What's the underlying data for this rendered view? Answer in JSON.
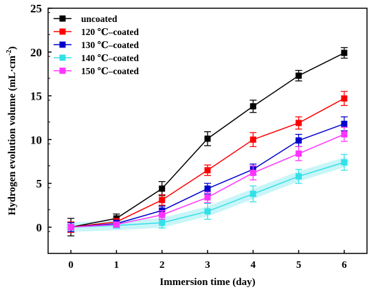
{
  "chart_data": {
    "type": "line",
    "title": "",
    "xlabel": "Immersion time (day)",
    "ylabel": "Hydrogen  evolution volume (mL·cm",
    "ylabel_sup": "-2",
    "ylabel_close": ")",
    "x": [
      0,
      1,
      2,
      3,
      4,
      5,
      6
    ],
    "xlim": [
      -0.5,
      6.5
    ],
    "ylim": [
      -3,
      25
    ],
    "xticks": [
      0,
      1,
      2,
      3,
      4,
      5,
      6
    ],
    "yticks": [
      0,
      5,
      10,
      15,
      20,
      25
    ],
    "grid": false,
    "legend_position": "top-left",
    "series": [
      {
        "name": "uncoated",
        "color": "#000000",
        "values": [
          0,
          1.0,
          4.4,
          10.1,
          13.8,
          17.3,
          19.9
        ],
        "errors": [
          1.0,
          0.5,
          0.8,
          0.8,
          0.7,
          0.6,
          0.6
        ],
        "halo": ""
      },
      {
        "name": "120 ℃–coated",
        "color": "#ff0000",
        "values": [
          0,
          0.6,
          3.1,
          6.5,
          10.0,
          11.9,
          14.7
        ],
        "errors": [
          0.6,
          0.4,
          0.6,
          0.6,
          0.8,
          0.7,
          0.8
        ],
        "halo": ""
      },
      {
        "name": "130 ℃–coated",
        "color": "#0000cc",
        "values": [
          0,
          0.4,
          1.9,
          4.4,
          6.6,
          9.9,
          11.8
        ],
        "errors": [
          0.5,
          0.4,
          0.5,
          0.6,
          0.6,
          0.7,
          0.8
        ],
        "halo": ""
      },
      {
        "name": "140 ℃–coated",
        "color": "#33e0e8",
        "values": [
          0,
          0.2,
          0.5,
          1.8,
          3.8,
          5.8,
          7.4
        ],
        "errors": [
          0.3,
          0.3,
          0.6,
          0.9,
          0.9,
          0.8,
          0.9
        ],
        "halo": "#bff3f7"
      },
      {
        "name": "150 ℃–coated",
        "color": "#ff33ff",
        "values": [
          0,
          0.3,
          1.4,
          3.4,
          6.2,
          8.4,
          10.6
        ],
        "errors": [
          0.3,
          0.3,
          0.5,
          0.6,
          0.8,
          0.8,
          0.8
        ],
        "halo": ""
      }
    ]
  }
}
